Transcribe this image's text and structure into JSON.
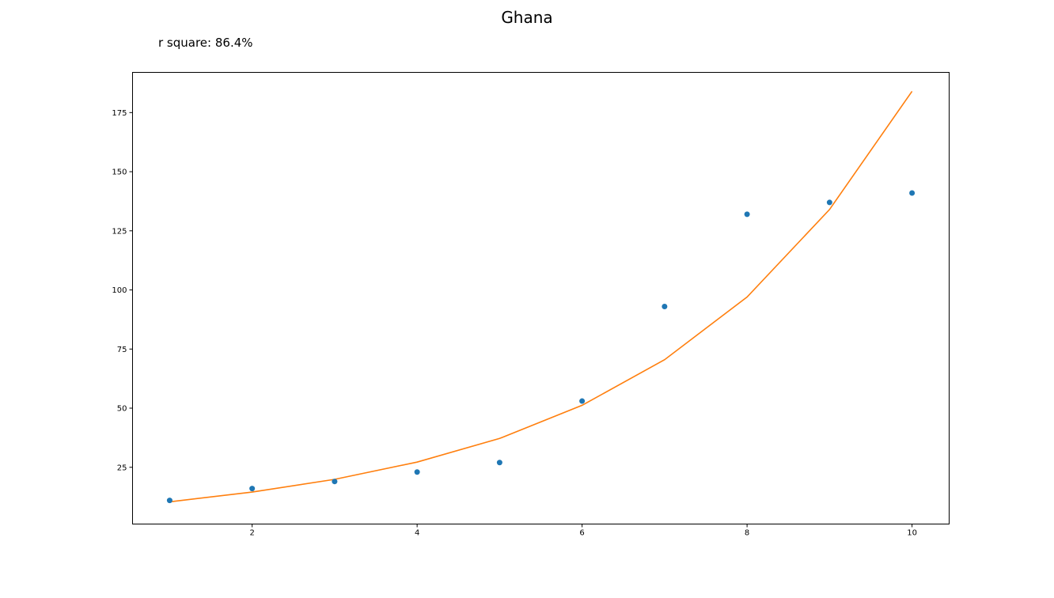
{
  "chart_data": {
    "type": "scatter",
    "title": "Ghana",
    "subtitle": "r square: 86.4%",
    "xlabel": "",
    "ylabel": "",
    "xlim": [
      0.55,
      10.45
    ],
    "ylim": [
      1,
      192
    ],
    "x_ticks": [
      2,
      4,
      6,
      8,
      10
    ],
    "y_ticks": [
      25,
      50,
      75,
      100,
      125,
      150,
      175
    ],
    "grid": false,
    "series": [
      {
        "kind": "scatter",
        "color": "#1f77b4",
        "x": [
          1,
          2,
          3,
          4,
          5,
          6,
          7,
          8,
          9,
          10
        ],
        "y": [
          11,
          16,
          19,
          23,
          27,
          53,
          93,
          132,
          137,
          141
        ]
      },
      {
        "kind": "line",
        "color": "#ff7f0e",
        "x": [
          1,
          2,
          3,
          4,
          5,
          6,
          7,
          8,
          9,
          10
        ],
        "y": [
          10.4,
          14.5,
          19.9,
          27.2,
          37.2,
          51.2,
          70.5,
          97,
          134,
          184
        ]
      }
    ]
  }
}
